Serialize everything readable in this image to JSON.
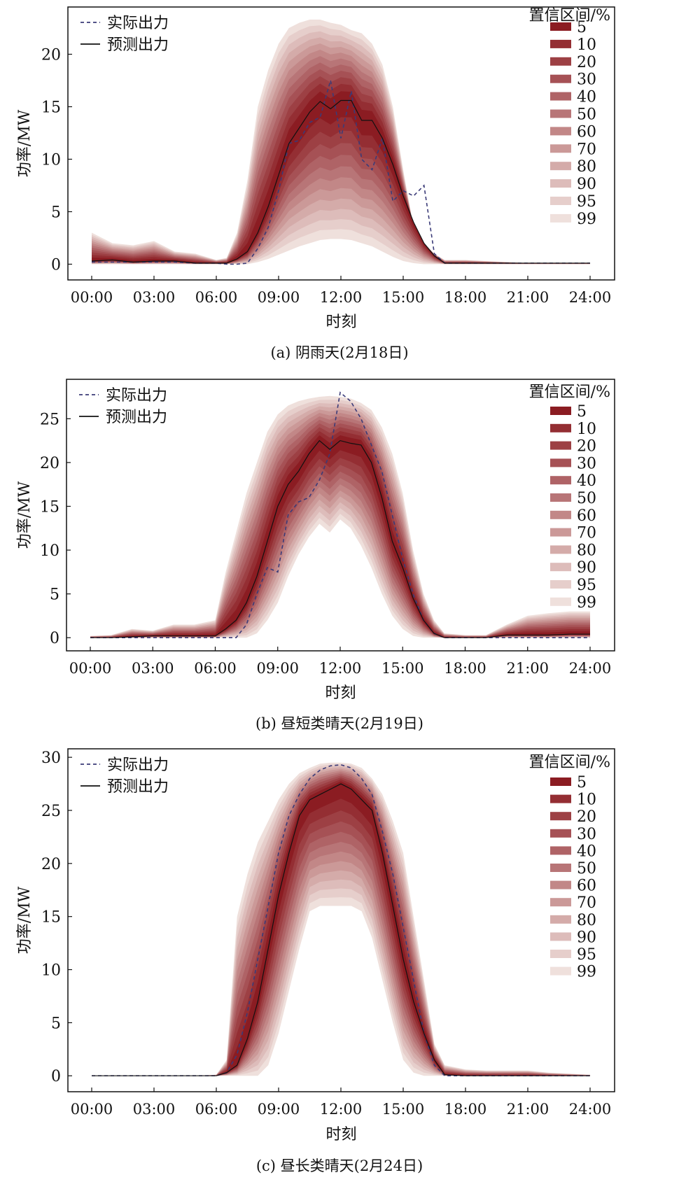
{
  "chart_data": [
    {
      "type": "area",
      "caption": "(a)  阴雨天(2月18日)",
      "xlabel": "时刻",
      "ylabel": "功率/MW",
      "xticks": [
        "00:00",
        "03:00",
        "06:00",
        "09:00",
        "12:00",
        "15:00",
        "18:00",
        "21:00",
        "24:00"
      ],
      "ylim": [
        -1.5,
        24.5
      ],
      "yticks": [
        0,
        5,
        10,
        15,
        20
      ],
      "legend_lines": [
        {
          "label": "实际出力",
          "style": "dashed",
          "color": "#3b3b78"
        },
        {
          "label": "预测出力",
          "style": "solid",
          "color": "#111111"
        }
      ],
      "legend_title": "置信区间/%",
      "confidence_levels": [
        "5",
        "10",
        "20",
        "30",
        "40",
        "50",
        "60",
        "70",
        "80",
        "90",
        "95",
        "99"
      ],
      "x_hours": [
        0,
        1,
        2,
        3,
        4,
        5,
        6,
        6.5,
        7,
        7.5,
        8,
        8.5,
        9,
        9.5,
        10,
        10.5,
        11,
        11.5,
        12,
        12.5,
        13,
        13.5,
        14,
        14.5,
        15,
        15.5,
        16,
        16.5,
        17,
        18,
        19,
        20,
        21,
        22,
        23,
        24
      ],
      "forecast": [
        0.3,
        0.4,
        0.2,
        0.3,
        0.3,
        0.1,
        0.1,
        0.1,
        0.5,
        1.2,
        3.0,
        5.5,
        8.5,
        11.5,
        13.0,
        14.5,
        15.5,
        14.8,
        15.6,
        15.6,
        13.7,
        13.7,
        12.0,
        9.5,
        6.5,
        4.0,
        2.0,
        0.8,
        0.1,
        0.1,
        0.1,
        0.1,
        0.1,
        0.1,
        0.1,
        0.1
      ],
      "actual": [
        0.2,
        0.2,
        0.2,
        0.2,
        0.2,
        0.1,
        0.1,
        0.0,
        0.0,
        0.1,
        1.5,
        3.5,
        7.0,
        11.5,
        11.8,
        13.5,
        14.0,
        17.5,
        12.0,
        16.5,
        10.0,
        9.0,
        12.0,
        6.0,
        7.0,
        6.5,
        7.5,
        1.0,
        0.1,
        0.1,
        0.1,
        0.1,
        0.1,
        0.1,
        0.1,
        0.1
      ],
      "upper_99": [
        3.0,
        2.0,
        1.8,
        2.2,
        1.2,
        1.0,
        0.4,
        0.6,
        3.0,
        8.0,
        15.0,
        18.5,
        21.0,
        22.5,
        23.0,
        23.3,
        23.3,
        23.0,
        22.8,
        22.3,
        22.0,
        21.0,
        19.0,
        15.0,
        9.0,
        3.5,
        2.0,
        1.0,
        0.4,
        0.4,
        0.3,
        0.2,
        0.1,
        0.1,
        0.1,
        0.1
      ],
      "lower_99": [
        0.0,
        0.0,
        0.0,
        0.0,
        0.0,
        0.0,
        0.0,
        0.0,
        0.0,
        0.0,
        0.2,
        0.5,
        0.9,
        1.3,
        1.7,
        2.0,
        2.3,
        2.4,
        2.4,
        2.3,
        2.0,
        1.7,
        1.2,
        0.7,
        0.3,
        0.1,
        0.0,
        0.0,
        0.0,
        0.0,
        0.0,
        0.0,
        0.0,
        0.0,
        0.0,
        0.0
      ]
    },
    {
      "type": "area",
      "caption": "(b)  昼短类晴天(2月19日)",
      "xlabel": "时刻",
      "ylabel": "功率/MW",
      "xticks": [
        "00:00",
        "03:00",
        "06:00",
        "09:00",
        "12:00",
        "15:00",
        "18:00",
        "21:00",
        "24:00"
      ],
      "ylim": [
        -1.5,
        29.5
      ],
      "yticks": [
        0,
        5,
        10,
        15,
        20,
        25
      ],
      "legend_lines": [
        {
          "label": "实际出力",
          "style": "dashed",
          "color": "#3b3b78"
        },
        {
          "label": "预测出力",
          "style": "solid",
          "color": "#111111"
        }
      ],
      "legend_title": "置信区间/%",
      "confidence_levels": [
        "5",
        "10",
        "20",
        "30",
        "40",
        "50",
        "60",
        "70",
        "80",
        "90",
        "95",
        "99"
      ],
      "x_hours": [
        0,
        1,
        2,
        3,
        4,
        5,
        6,
        6.5,
        7,
        7.5,
        8,
        8.5,
        9,
        9.5,
        10,
        10.5,
        11,
        11.5,
        12,
        12.5,
        13,
        13.5,
        14,
        14.5,
        15,
        15.5,
        16,
        16.5,
        17,
        18,
        19,
        20,
        21,
        22,
        23,
        24
      ],
      "forecast": [
        0.0,
        0.0,
        0.1,
        0.2,
        0.2,
        0.2,
        0.2,
        1.0,
        2.0,
        4.0,
        7.0,
        11.0,
        15.0,
        17.5,
        19.0,
        21.0,
        22.5,
        21.5,
        22.5,
        22.2,
        22.0,
        20.0,
        16.0,
        11.0,
        8.0,
        4.5,
        2.0,
        0.5,
        0.0,
        0.0,
        0.0,
        0.3,
        0.3,
        0.3,
        0.4,
        0.4
      ],
      "actual": [
        0.0,
        0.0,
        0.0,
        0.0,
        0.0,
        0.0,
        0.0,
        0.0,
        0.0,
        1.5,
        5.0,
        8.0,
        7.5,
        14.0,
        15.5,
        16.0,
        18.0,
        21.0,
        28.0,
        27.0,
        25.0,
        22.0,
        19.0,
        14.0,
        9.0,
        5.0,
        2.0,
        0.5,
        0.0,
        0.0,
        0.0,
        0.0,
        0.0,
        0.0,
        0.0,
        0.0
      ],
      "upper_99": [
        0.2,
        0.3,
        1.0,
        0.8,
        1.5,
        1.5,
        2.0,
        7.5,
        12.0,
        16.5,
        20.0,
        23.5,
        25.5,
        26.5,
        27.0,
        27.3,
        27.5,
        27.6,
        27.5,
        27.3,
        26.8,
        26.0,
        24.0,
        21.0,
        16.5,
        10.0,
        5.0,
        2.0,
        0.5,
        0.3,
        0.3,
        1.5,
        2.5,
        2.8,
        3.0,
        3.0
      ],
      "lower_99": [
        0.0,
        0.0,
        0.0,
        0.0,
        0.0,
        0.0,
        0.0,
        0.0,
        0.0,
        0.0,
        0.5,
        2.0,
        4.0,
        7.0,
        9.5,
        11.5,
        13.0,
        12.0,
        13.5,
        12.5,
        10.5,
        8.0,
        5.0,
        2.5,
        1.0,
        0.2,
        0.0,
        0.0,
        0.0,
        0.0,
        0.0,
        0.0,
        0.0,
        0.0,
        0.0,
        0.0
      ]
    },
    {
      "type": "area",
      "caption": "(c)  昼长类晴天(2月24日)",
      "xlabel": "时刻",
      "ylabel": "功率/MW",
      "xticks": [
        "00:00",
        "03:00",
        "06:00",
        "09:00",
        "12:00",
        "15:00",
        "18:00",
        "21:00",
        "24:00"
      ],
      "ylim": [
        -1.5,
        30.8
      ],
      "yticks": [
        0,
        5,
        10,
        15,
        20,
        25,
        30
      ],
      "legend_lines": [
        {
          "label": "实际出力",
          "style": "dashed",
          "color": "#3b3b78"
        },
        {
          "label": "预测出力",
          "style": "solid",
          "color": "#111111"
        }
      ],
      "legend_title": "置信区间/%",
      "confidence_levels": [
        "5",
        "10",
        "20",
        "30",
        "40",
        "50",
        "60",
        "70",
        "80",
        "90",
        "95",
        "99"
      ],
      "x_hours": [
        0,
        1,
        2,
        3,
        4,
        5,
        6,
        6.5,
        7,
        7.5,
        8,
        8.5,
        9,
        9.5,
        10,
        10.5,
        11,
        11.5,
        12,
        12.5,
        13,
        13.5,
        14,
        14.5,
        15,
        15.5,
        16,
        16.5,
        17,
        18,
        19,
        20,
        21,
        22,
        23,
        24
      ],
      "forecast": [
        0.0,
        0.0,
        0.0,
        0.0,
        0.0,
        0.0,
        0.0,
        0.3,
        1.0,
        3.5,
        7.0,
        12.0,
        17.0,
        21.0,
        24.5,
        26.0,
        26.5,
        27.0,
        27.5,
        27.0,
        26.0,
        25.0,
        21.0,
        16.0,
        11.0,
        7.0,
        4.0,
        1.5,
        0.1,
        0.0,
        0.0,
        0.0,
        0.0,
        0.0,
        0.0,
        0.0
      ],
      "actual": [
        0.0,
        0.0,
        0.0,
        0.0,
        0.0,
        0.0,
        0.0,
        0.3,
        2.0,
        6.0,
        11.0,
        16.0,
        21.0,
        24.5,
        26.5,
        28.0,
        28.8,
        29.2,
        29.3,
        29.0,
        28.0,
        26.5,
        23.0,
        19.0,
        14.0,
        9.0,
        4.0,
        1.0,
        0.0,
        0.0,
        0.0,
        0.0,
        0.0,
        0.0,
        0.0,
        0.0
      ],
      "upper_99": [
        0.0,
        0.0,
        0.0,
        0.0,
        0.0,
        0.0,
        0.1,
        1.5,
        15.0,
        19.0,
        22.0,
        24.0,
        26.0,
        27.5,
        28.5,
        29.0,
        29.4,
        29.5,
        29.5,
        29.4,
        29.0,
        28.0,
        26.5,
        24.0,
        21.0,
        15.0,
        9.0,
        3.0,
        1.0,
        0.6,
        0.5,
        0.5,
        0.5,
        0.3,
        0.2,
        0.1
      ],
      "lower_99": [
        0.0,
        0.0,
        0.0,
        0.0,
        0.0,
        0.0,
        0.0,
        0.0,
        0.0,
        0.0,
        0.0,
        1.0,
        4.0,
        8.0,
        12.0,
        15.5,
        16.0,
        16.0,
        16.0,
        16.0,
        15.5,
        13.0,
        9.0,
        5.0,
        1.5,
        0.3,
        0.0,
        0.0,
        0.0,
        0.0,
        0.0,
        0.0,
        0.0,
        0.0,
        0.0,
        0.0
      ]
    }
  ],
  "colors": {
    "axis": "#111111",
    "actual_line": "#3b3b78",
    "forecast_line": "#111111",
    "band_dark": "#8b1c22",
    "band_light": "#efe0dc"
  }
}
